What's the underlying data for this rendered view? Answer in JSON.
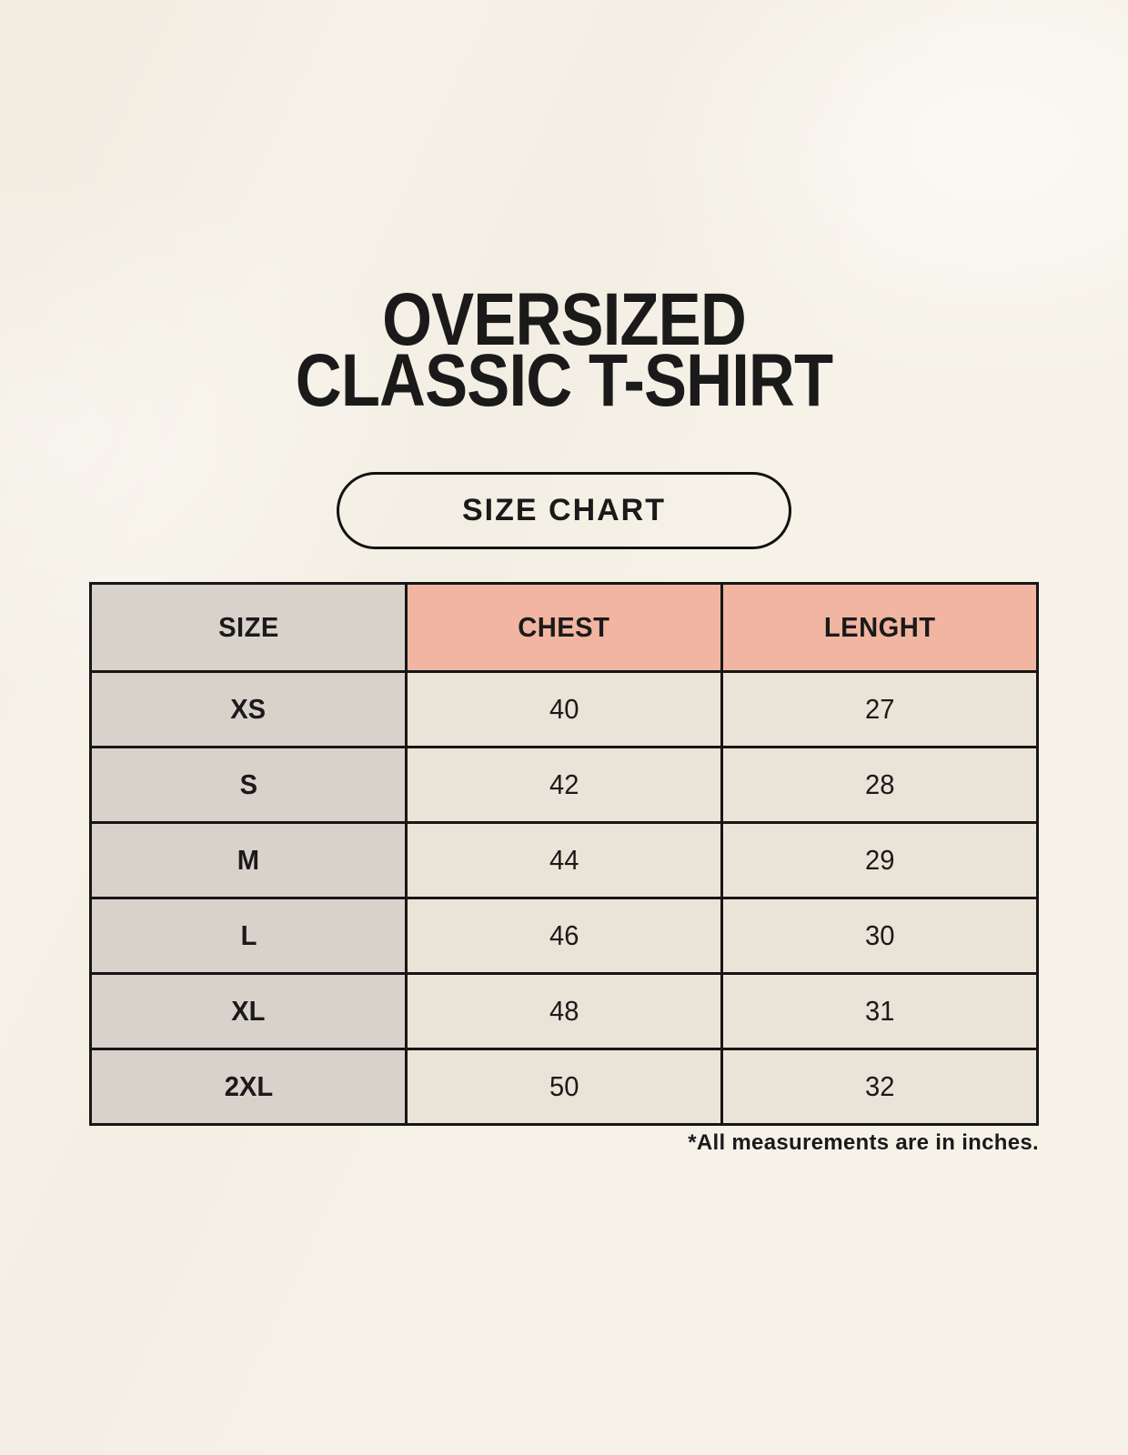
{
  "header": {
    "title_line1": "OVERSIZED",
    "title_line2": "CLASSIC T-SHIRT",
    "badge_label": "SIZE CHART"
  },
  "footnote": "*All measurements are in inches.",
  "colors": {
    "background": "#f6f2e8",
    "table_border": "#161616",
    "size_column_bg": "#d9d2cb",
    "measure_header_bg": "#f1b5a1",
    "data_cell_bg": "#eae3d7",
    "text": "#1a1a1a"
  },
  "chart_data": {
    "type": "table",
    "title": "OVERSIZED CLASSIC T-SHIRT",
    "subtitle": "SIZE CHART",
    "columns": [
      "SIZE",
      "CHEST",
      "LENGHT"
    ],
    "rows": [
      [
        "XS",
        "40",
        "27"
      ],
      [
        "S",
        "42",
        "28"
      ],
      [
        "M",
        "44",
        "29"
      ],
      [
        "L",
        "46",
        "30"
      ],
      [
        "XL",
        "48",
        "31"
      ],
      [
        "2XL",
        "50",
        "32"
      ]
    ],
    "units_note": "*All measurements are in inches.",
    "layout": {
      "header_accent_columns": [
        "CHEST",
        "LENGHT"
      ],
      "units": "inches"
    }
  }
}
